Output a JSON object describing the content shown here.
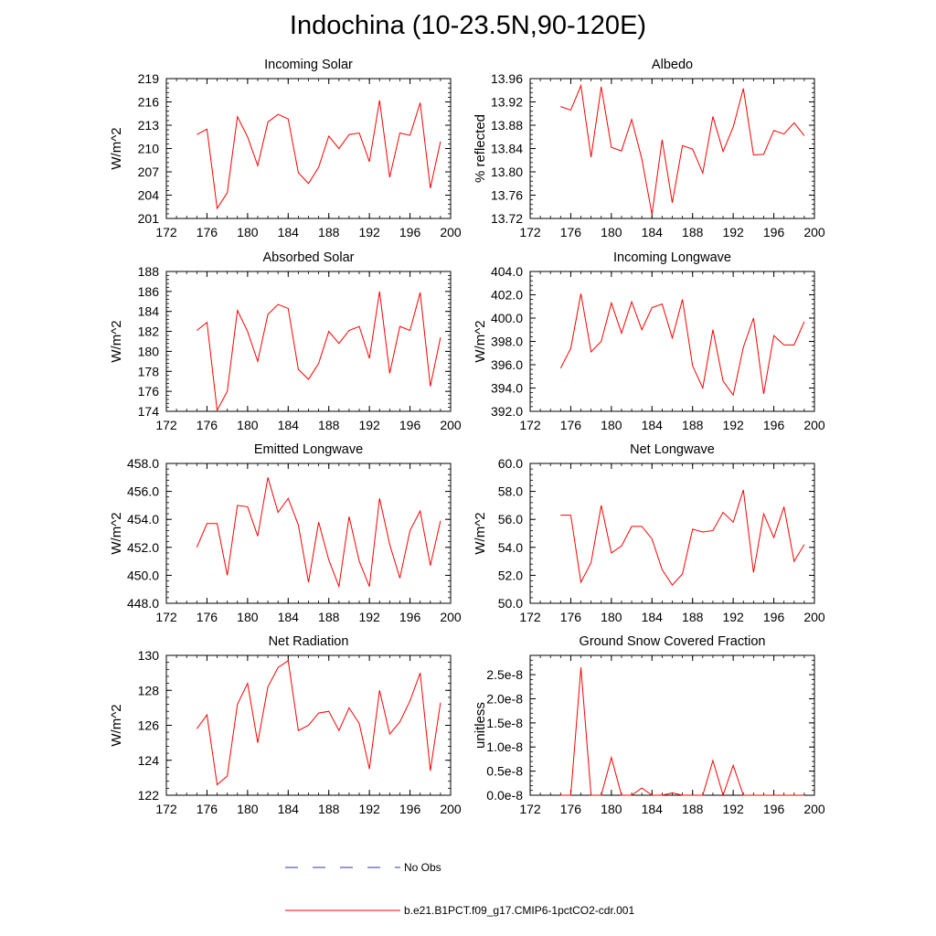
{
  "title": "Indochina (10-23.5N,90-120E)",
  "legend": {
    "items": [
      {
        "label": "No Obs",
        "color": "#3333aa",
        "style": "dashed"
      },
      {
        "label": "b.e21.B1PCT.f09_g17.CMIP6-1pctCO2-cdr.001",
        "color": "#ff0000",
        "style": "solid"
      }
    ]
  },
  "chart_data": [
    {
      "type": "line",
      "title": "Incoming Solar",
      "ylabel": "W/m^2",
      "xlim": [
        172,
        200
      ],
      "ylim": [
        201,
        219
      ],
      "xticks": [
        "172",
        "176",
        "180",
        "184",
        "188",
        "192",
        "196",
        "200"
      ],
      "yticks": [
        "201",
        "204",
        "207",
        "210",
        "213",
        "216",
        "219"
      ],
      "x": [
        175,
        176,
        177,
        178,
        179,
        180,
        181,
        182,
        183,
        184,
        185,
        186,
        187,
        188,
        189,
        190,
        191,
        192,
        193,
        194,
        195,
        196,
        197,
        198,
        199
      ],
      "series": [
        {
          "name": "b.e21.B1PCT.f09_g17.CMIP6-1pctCO2-cdr.001",
          "color": "#ff0000",
          "values": [
            211.8,
            212.5,
            202.3,
            204.3,
            214.1,
            211.5,
            207.8,
            213.4,
            214.4,
            213.8,
            206.9,
            205.5,
            207.6,
            211.6,
            210.0,
            211.8,
            212.0,
            208.3,
            216.2,
            206.3,
            212.0,
            211.7,
            215.9,
            204.9,
            210.9
          ]
        }
      ]
    },
    {
      "type": "line",
      "title": "Albedo",
      "ylabel": "% reflected",
      "xlim": [
        172,
        200
      ],
      "ylim": [
        13.72,
        13.96
      ],
      "xticks": [
        "172",
        "176",
        "180",
        "184",
        "188",
        "192",
        "196",
        "200"
      ],
      "yticks": [
        "13.72",
        "13.76",
        "13.80",
        "13.84",
        "13.88",
        "13.92",
        "13.96"
      ],
      "x": [
        175,
        176,
        177,
        178,
        179,
        180,
        181,
        182,
        183,
        184,
        185,
        186,
        187,
        188,
        189,
        190,
        191,
        192,
        193,
        194,
        195,
        196,
        197,
        198,
        199
      ],
      "series": [
        {
          "name": "b.e21.B1PCT.f09_g17.CMIP6-1pctCO2-cdr.001",
          "color": "#ff0000",
          "values": [
            13.912,
            13.906,
            13.948,
            13.825,
            13.946,
            13.842,
            13.836,
            13.89,
            13.822,
            13.727,
            13.855,
            13.747,
            13.845,
            13.839,
            13.798,
            13.895,
            13.835,
            13.877,
            13.943,
            13.829,
            13.83,
            13.871,
            13.865,
            13.884,
            13.862
          ]
        }
      ]
    },
    {
      "type": "line",
      "title": "Absorbed Solar",
      "ylabel": "W/m^2",
      "xlim": [
        172,
        200
      ],
      "ylim": [
        174,
        188
      ],
      "xticks": [
        "172",
        "176",
        "180",
        "184",
        "188",
        "192",
        "196",
        "200"
      ],
      "yticks": [
        "174",
        "176",
        "178",
        "180",
        "182",
        "184",
        "186",
        "188"
      ],
      "x": [
        175,
        176,
        177,
        178,
        179,
        180,
        181,
        182,
        183,
        184,
        185,
        186,
        187,
        188,
        189,
        190,
        191,
        192,
        193,
        194,
        195,
        196,
        197,
        198,
        199
      ],
      "series": [
        {
          "name": "b.e21.B1PCT.f09_g17.CMIP6-1pctCO2-cdr.001",
          "color": "#ff0000",
          "values": [
            182.1,
            182.9,
            174.1,
            176.0,
            184.1,
            182.0,
            179.0,
            183.7,
            184.7,
            184.3,
            178.2,
            177.2,
            178.8,
            182.0,
            180.8,
            182.1,
            182.5,
            179.3,
            186.0,
            177.8,
            182.5,
            182.1,
            185.9,
            176.5,
            181.4
          ]
        }
      ]
    },
    {
      "type": "line",
      "title": "Incoming Longwave",
      "ylabel": "W/m^2",
      "xlim": [
        172,
        200
      ],
      "ylim": [
        392.0,
        404.0
      ],
      "xticks": [
        "172",
        "176",
        "180",
        "184",
        "188",
        "192",
        "196",
        "200"
      ],
      "yticks": [
        "392.0",
        "394.0",
        "396.0",
        "398.0",
        "400.0",
        "402.0",
        "404.0"
      ],
      "x": [
        175,
        176,
        177,
        178,
        179,
        180,
        181,
        182,
        183,
        184,
        185,
        186,
        187,
        188,
        189,
        190,
        191,
        192,
        193,
        194,
        195,
        196,
        197,
        198,
        199
      ],
      "series": [
        {
          "name": "b.e21.B1PCT.f09_g17.CMIP6-1pctCO2-cdr.001",
          "color": "#ff0000",
          "values": [
            395.7,
            397.4,
            402.1,
            397.1,
            398.0,
            401.3,
            398.7,
            401.4,
            399.0,
            400.9,
            401.2,
            398.3,
            401.6,
            395.9,
            394.0,
            399.0,
            394.6,
            393.4,
            397.5,
            400.0,
            393.5,
            398.5,
            397.7,
            397.7,
            399.7
          ]
        }
      ]
    },
    {
      "type": "line",
      "title": "Emitted Longwave",
      "ylabel": "W/m^2",
      "xlim": [
        172,
        200
      ],
      "ylim": [
        448.0,
        458.0
      ],
      "xticks": [
        "172",
        "176",
        "180",
        "184",
        "188",
        "192",
        "196",
        "200"
      ],
      "yticks": [
        "448.0",
        "450.0",
        "452.0",
        "454.0",
        "456.0",
        "458.0"
      ],
      "x": [
        175,
        176,
        177,
        178,
        179,
        180,
        181,
        182,
        183,
        184,
        185,
        186,
        187,
        188,
        189,
        190,
        191,
        192,
        193,
        194,
        195,
        196,
        197,
        198,
        199
      ],
      "series": [
        {
          "name": "b.e21.B1PCT.f09_g17.CMIP6-1pctCO2-cdr.001",
          "color": "#ff0000",
          "values": [
            452.0,
            453.7,
            453.7,
            450.0,
            455.0,
            454.9,
            452.8,
            457.0,
            454.5,
            455.5,
            453.6,
            449.5,
            453.8,
            451.1,
            449.2,
            454.2,
            451.0,
            449.2,
            455.5,
            452.2,
            449.8,
            453.2,
            454.6,
            450.7,
            453.9
          ]
        }
      ]
    },
    {
      "type": "line",
      "title": "Net Longwave",
      "ylabel": "W/m^2",
      "xlim": [
        172,
        200
      ],
      "ylim": [
        50.0,
        60.0
      ],
      "xticks": [
        "172",
        "176",
        "180",
        "184",
        "188",
        "192",
        "196",
        "200"
      ],
      "yticks": [
        "50.0",
        "52.0",
        "54.0",
        "56.0",
        "58.0",
        "60.0"
      ],
      "x": [
        175,
        176,
        177,
        178,
        179,
        180,
        181,
        182,
        183,
        184,
        185,
        186,
        187,
        188,
        189,
        190,
        191,
        192,
        193,
        194,
        195,
        196,
        197,
        198,
        199
      ],
      "series": [
        {
          "name": "b.e21.B1PCT.f09_g17.CMIP6-1pctCO2-cdr.001",
          "color": "#ff0000",
          "values": [
            56.3,
            56.3,
            51.5,
            52.9,
            57.0,
            53.6,
            54.1,
            55.5,
            55.5,
            54.6,
            52.4,
            51.3,
            52.1,
            55.3,
            55.1,
            55.2,
            56.5,
            55.8,
            58.1,
            52.2,
            56.4,
            54.7,
            56.9,
            53.0,
            54.2
          ]
        }
      ]
    },
    {
      "type": "line",
      "title": "Net Radiation",
      "ylabel": "W/m^2",
      "xlim": [
        172,
        200
      ],
      "ylim": [
        122,
        130
      ],
      "xticks": [
        "172",
        "176",
        "180",
        "184",
        "188",
        "192",
        "196",
        "200"
      ],
      "yticks": [
        "122",
        "124",
        "126",
        "128",
        "130"
      ],
      "x": [
        175,
        176,
        177,
        178,
        179,
        180,
        181,
        182,
        183,
        184,
        185,
        186,
        187,
        188,
        189,
        190,
        191,
        192,
        193,
        194,
        195,
        196,
        197,
        198,
        199
      ],
      "series": [
        {
          "name": "b.e21.B1PCT.f09_g17.CMIP6-1pctCO2-cdr.001",
          "color": "#ff0000",
          "values": [
            125.8,
            126.6,
            122.6,
            123.1,
            127.2,
            128.4,
            125.0,
            128.2,
            129.3,
            129.7,
            125.7,
            126.0,
            126.7,
            126.8,
            125.7,
            127.0,
            126.1,
            123.5,
            128.0,
            125.5,
            126.2,
            127.4,
            129.0,
            123.4,
            127.3
          ]
        }
      ]
    },
    {
      "type": "line",
      "title": "Ground Snow Covered Fraction",
      "ylabel": "unitless",
      "xlim": [
        172,
        200
      ],
      "ylim": [
        0,
        2.9e-08
      ],
      "xticks": [
        "172",
        "176",
        "180",
        "184",
        "188",
        "192",
        "196",
        "200"
      ],
      "ytick_values": [
        0,
        5e-09,
        1e-08,
        1.5e-08,
        2e-08,
        2.5e-08
      ],
      "yticks": [
        "0.0e-8",
        "0.5e-8",
        "1.0e-8",
        "1.5e-8",
        "2.0e-8",
        "2.5e-8"
      ],
      "x": [
        175,
        176,
        177,
        178,
        179,
        180,
        181,
        182,
        183,
        184,
        185,
        186,
        187,
        188,
        189,
        190,
        191,
        192,
        193,
        194,
        195,
        196,
        197,
        198,
        199
      ],
      "series": [
        {
          "name": "b.e21.B1PCT.f09_g17.CMIP6-1pctCO2-cdr.001",
          "color": "#ff0000",
          "values": [
            0,
            0,
            2.65e-08,
            0,
            0,
            7.8e-09,
            0,
            0,
            1.5e-09,
            0,
            0,
            5e-10,
            0,
            0,
            0,
            7.2e-09,
            0,
            6.2e-09,
            0,
            0,
            0,
            0,
            0,
            0,
            0
          ]
        }
      ]
    }
  ]
}
